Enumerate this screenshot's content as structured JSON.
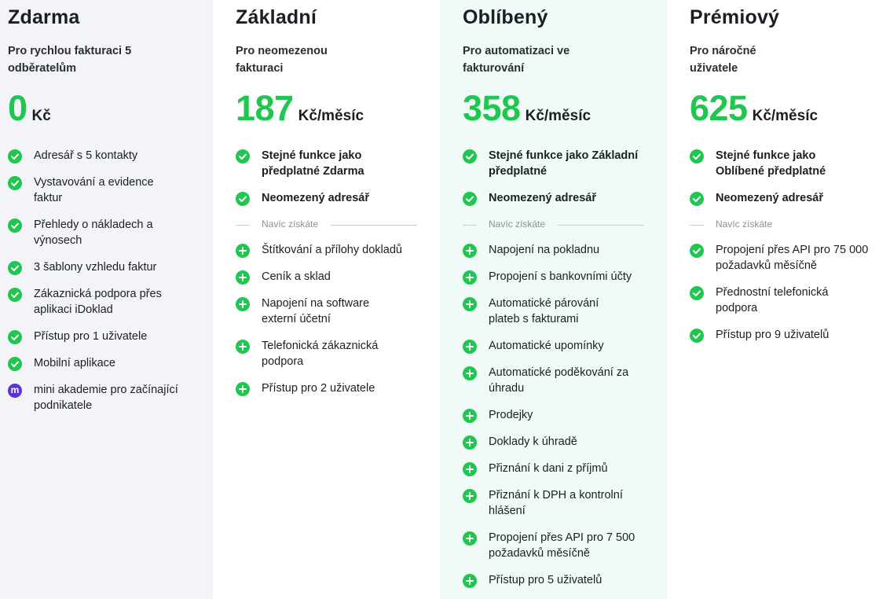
{
  "plans": [
    {
      "name": "Zdarma",
      "subtitle": "Pro rychlou fakturaci 5 odběratelům",
      "price_amount": "0",
      "price_unit": "Kč",
      "features": [
        {
          "text": "Adresář s 5 kontakty",
          "icon": "check-icon"
        },
        {
          "text": "Vystavování a evidence faktur",
          "icon": "check-icon"
        },
        {
          "text": "Přehledy o nákladech a výnosech",
          "icon": "check-icon"
        },
        {
          "text": "3 šablony vzhledu faktur",
          "icon": "check-icon"
        },
        {
          "text": "Zákaznická podpora přes aplikaci iDoklad",
          "icon": "check-icon"
        },
        {
          "text": "Přístup pro 1 uživatele",
          "icon": "check-icon"
        },
        {
          "text": "Mobilní aplikace",
          "icon": "check-icon"
        },
        {
          "text": "mini akademie pro začínající podnikatele",
          "icon": "mini-akademie-icon",
          "icon_glyph": "m"
        }
      ]
    },
    {
      "name": "Základní",
      "subtitle": "Pro neomezenou fakturaci",
      "price_amount": "187",
      "price_unit": "Kč/měsíc",
      "base_features": [
        {
          "text": "Stejné funkce jako předplatné Zdarma",
          "icon": "check-icon"
        },
        {
          "text": "Neomezený adresář",
          "icon": "check-icon"
        }
      ],
      "extra_label": "Navíc získáte",
      "extra_features": [
        {
          "text": "Štítkování a přílohy dokladů",
          "icon": "plus-icon"
        },
        {
          "text": "Ceník a sklad",
          "icon": "plus-icon"
        },
        {
          "text": "Napojení na software externí účetní",
          "icon": "plus-icon"
        },
        {
          "text": "Telefonická zákaznická podpora",
          "icon": "plus-icon"
        },
        {
          "text": "Přístup pro 2 uživatele",
          "icon": "plus-icon"
        }
      ]
    },
    {
      "name": "Oblíbený",
      "subtitle": "Pro automatizaci ve fakturování",
      "price_amount": "358",
      "price_unit": "Kč/měsíc",
      "base_features": [
        {
          "text": "Stejné funkce jako Základní předplatné",
          "icon": "check-icon"
        },
        {
          "text": "Neomezený adresář",
          "icon": "check-icon"
        }
      ],
      "extra_label": "Navíc získáte",
      "extra_features": [
        {
          "text": "Napojení na pokladnu",
          "icon": "plus-icon"
        },
        {
          "text": "Propojení s bankovními účty",
          "icon": "plus-icon"
        },
        {
          "text": "Automatické párování plateb s fakturami",
          "icon": "plus-icon"
        },
        {
          "text": "Automatické upomínky",
          "icon": "plus-icon"
        },
        {
          "text": "Automatické poděkování za úhradu",
          "icon": "plus-icon"
        },
        {
          "text": "Prodejky",
          "icon": "plus-icon"
        },
        {
          "text": "Doklady k úhradě",
          "icon": "plus-icon"
        },
        {
          "text": "Přiznání k dani z příjmů",
          "icon": "plus-icon"
        },
        {
          "text": "Přiznání k DPH a kontrolní hlášení",
          "icon": "plus-icon"
        },
        {
          "text": "Propojení přes API pro 7 500 požadavků měsíčně",
          "icon": "plus-icon"
        },
        {
          "text": "Přístup pro 5 uživatelů",
          "icon": "plus-icon"
        }
      ]
    },
    {
      "name": "Prémiový",
      "subtitle": "Pro náročné uživatele",
      "price_amount": "625",
      "price_unit": "Kč/měsíc",
      "base_features": [
        {
          "text": "Stejné funkce jako Oblíbené předplatné",
          "icon": "check-icon"
        },
        {
          "text": "Neomezený adresář",
          "icon": "check-icon"
        }
      ],
      "extra_label": "Navíc získáte",
      "extra_features": [
        {
          "text": "Propojení přes API pro 75 000 požadavků měsíčně",
          "icon": "check-icon"
        },
        {
          "text": "Přednostní telefonická podpora",
          "icon": "check-icon"
        },
        {
          "text": "Přístup pro 9 uživatelů",
          "icon": "check-icon"
        }
      ]
    }
  ],
  "colors": {
    "accent_green": "#1fc64f",
    "mini_purple": "#5a34d6",
    "free_bg": "#f3f4f7",
    "popular_bg": "#f0faf7"
  }
}
